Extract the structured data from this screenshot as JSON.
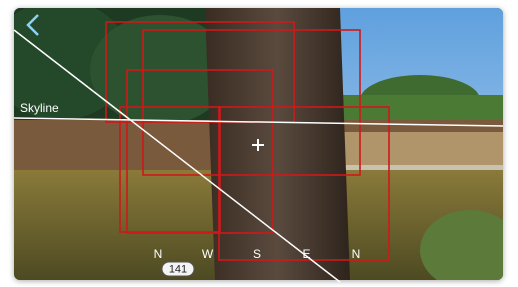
{
  "skyline_label": "Skyline",
  "compass": {
    "labels": [
      "N",
      "W",
      "S",
      "E",
      "N"
    ],
    "heading": 141
  }
}
